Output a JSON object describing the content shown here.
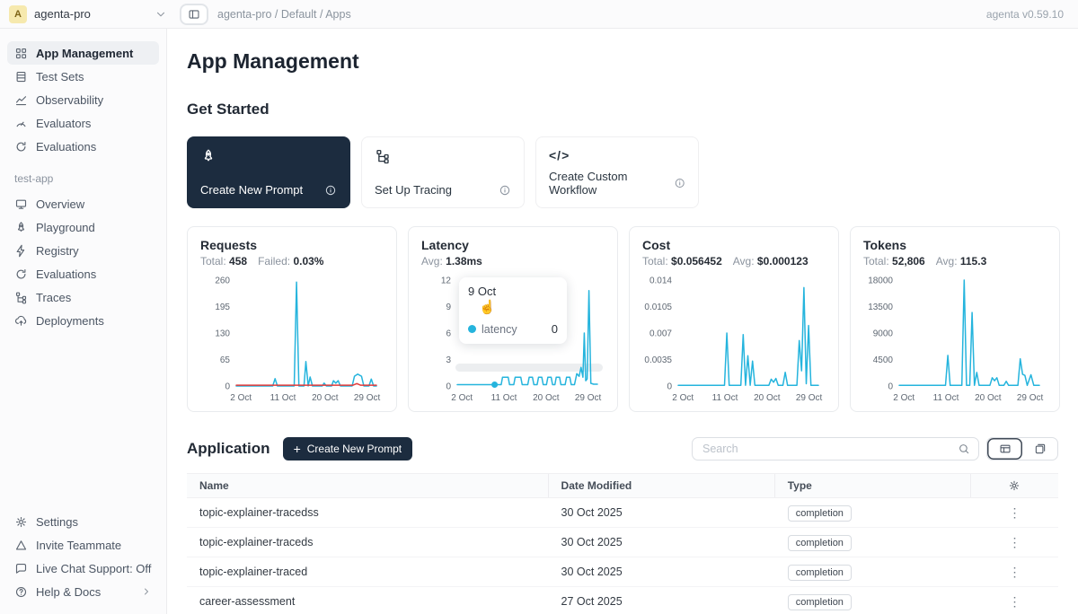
{
  "app": {
    "version_label": "agenta v0.59.10"
  },
  "icons": {
    "plus": "+",
    "kebab": "⋮",
    "cursor": "☝",
    "code": "</>"
  },
  "colors": {
    "accent_dark": "#1c2c3f",
    "chart_line": "#25b4dd",
    "failed_line": "#e23b3b",
    "avatar_bg": "#f6e9ae",
    "selected_pill": "#eef0f3"
  },
  "topbar": {
    "workspace": {
      "avatar_letter": "A",
      "name": "agenta-pro"
    },
    "breadcrumb": "agenta-pro / Default / Apps"
  },
  "sidebar": {
    "main_items": [
      {
        "label": "App Management",
        "selected": true
      },
      {
        "label": "Test Sets"
      },
      {
        "label": "Observability"
      },
      {
        "label": "Evaluators"
      },
      {
        "label": "Evaluations"
      }
    ],
    "section_label": "test-app",
    "app_items": [
      {
        "label": "Overview"
      },
      {
        "label": "Playground"
      },
      {
        "label": "Registry"
      },
      {
        "label": "Evaluations"
      },
      {
        "label": "Traces"
      },
      {
        "label": "Deployments"
      }
    ],
    "footer_items": [
      {
        "label": "Settings"
      },
      {
        "label": "Invite Teammate"
      },
      {
        "label": "Live Chat Support: Off"
      },
      {
        "label": "Help & Docs"
      }
    ]
  },
  "main": {
    "title": "App Management",
    "get_started": {
      "heading": "Get Started",
      "cards": [
        {
          "label": "Create New Prompt"
        },
        {
          "label": "Set Up Tracing"
        },
        {
          "label": "Create Custom Workflow"
        }
      ]
    },
    "latency_tooltip": {
      "date": "9 Oct",
      "series": "latency",
      "value": "0"
    },
    "application": {
      "heading": "Application",
      "create_button_label": "Create New Prompt",
      "search_placeholder": "Search",
      "table": {
        "columns": [
          "Name",
          "Date Modified",
          "Type"
        ],
        "rows": [
          {
            "name": "topic-explainer-tracedss",
            "date_modified": "30 Oct 2025",
            "type": "completion"
          },
          {
            "name": "topic-explainer-traceds",
            "date_modified": "30 Oct 2025",
            "type": "completion"
          },
          {
            "name": "topic-explainer-traced",
            "date_modified": "30 Oct 2025",
            "type": "completion"
          },
          {
            "name": "career-assessment",
            "date_modified": "27 Oct 2025",
            "type": "completion"
          }
        ]
      }
    }
  },
  "chart_data": [
    {
      "type": "line",
      "title": "Requests",
      "stats": [
        {
          "label": "Total:",
          "value": "458"
        },
        {
          "label": "Failed:",
          "value": "0.03%"
        }
      ],
      "xlim": [
        1,
        31
      ],
      "ylim": [
        0,
        260
      ],
      "yticks": [
        0,
        65,
        130,
        195,
        260
      ],
      "xticks": [
        {
          "pos": 2,
          "label": "2 Oct"
        },
        {
          "pos": 11,
          "label": "11 Oct"
        },
        {
          "pos": 20,
          "label": "20 Oct"
        },
        {
          "pos": 29,
          "label": "29 Oct"
        }
      ],
      "grid": false,
      "legend": "none",
      "series": [
        {
          "name": "requests",
          "color": "#25b4dd",
          "points": [
            [
              1,
              0
            ],
            [
              8.8,
              0
            ],
            [
              9.3,
              18
            ],
            [
              9.8,
              0
            ],
            [
              13.4,
              0
            ],
            [
              13.9,
              255
            ],
            [
              14.4,
              0
            ],
            [
              15.5,
              0
            ],
            [
              15.9,
              60
            ],
            [
              16.4,
              0
            ],
            [
              16.8,
              22
            ],
            [
              17.3,
              0
            ],
            [
              19.4,
              0
            ],
            [
              19.8,
              7
            ],
            [
              20.3,
              0
            ],
            [
              21.4,
              0
            ],
            [
              21.8,
              13
            ],
            [
              22.3,
              7
            ],
            [
              22.8,
              13
            ],
            [
              23.3,
              0
            ],
            [
              25.8,
              0
            ],
            [
              26.3,
              24
            ],
            [
              27,
              29
            ],
            [
              27.8,
              24
            ],
            [
              28.3,
              0
            ],
            [
              29.4,
              0
            ],
            [
              29.9,
              17
            ],
            [
              30.4,
              0
            ],
            [
              31,
              0
            ]
          ]
        },
        {
          "name": "failed",
          "color": "#e23b3b",
          "points": [
            [
              1,
              2
            ],
            [
              26,
              2
            ],
            [
              26.8,
              6
            ],
            [
              27.6,
              2
            ],
            [
              31,
              2
            ]
          ]
        }
      ]
    },
    {
      "type": "line",
      "title": "Latency",
      "stats": [
        {
          "label": "Avg:",
          "value": "1.38ms"
        }
      ],
      "xlim": [
        1,
        31
      ],
      "ylim": [
        0,
        12
      ],
      "yticks": [
        0,
        3,
        6,
        9,
        12
      ],
      "xticks": [
        {
          "pos": 2,
          "label": "2 Oct"
        },
        {
          "pos": 11,
          "label": "11 Oct"
        },
        {
          "pos": 20,
          "label": "20 Oct"
        },
        {
          "pos": 29,
          "label": "29 Oct"
        }
      ],
      "grid": false,
      "legend": "none",
      "marker": {
        "x": 9,
        "y": 0.15,
        "color": "#25b4dd"
      },
      "series": [
        {
          "name": "latency",
          "color": "#25b4dd",
          "points": [
            [
              1,
              0.15
            ],
            [
              9,
              0.15
            ],
            [
              10.4,
              0.15
            ],
            [
              10.7,
              1
            ],
            [
              11.9,
              1
            ],
            [
              12.2,
              0.15
            ],
            [
              13.1,
              0.15
            ],
            [
              13.4,
              1
            ],
            [
              14.6,
              1
            ],
            [
              14.9,
              0.15
            ],
            [
              16.1,
              0.15
            ],
            [
              16.4,
              1
            ],
            [
              17.1,
              1
            ],
            [
              17.4,
              0.15
            ],
            [
              18.1,
              0.15
            ],
            [
              18.4,
              1
            ],
            [
              19.1,
              1
            ],
            [
              19.4,
              0.15
            ],
            [
              20.1,
              0.15
            ],
            [
              20.4,
              1
            ],
            [
              21.1,
              1
            ],
            [
              21.4,
              0.15
            ],
            [
              21.9,
              0.15
            ],
            [
              22.2,
              1
            ],
            [
              22.9,
              1
            ],
            [
              23.2,
              0.15
            ],
            [
              24.1,
              0.15
            ],
            [
              24.4,
              1
            ],
            [
              25.1,
              1
            ],
            [
              25.4,
              0.15
            ],
            [
              26.1,
              0.15
            ],
            [
              26.6,
              1.4
            ],
            [
              27.1,
              1.1
            ],
            [
              27.5,
              2.1
            ],
            [
              27.9,
              1
            ],
            [
              28.2,
              6
            ],
            [
              28.5,
              0.6
            ],
            [
              28.8,
              0.8
            ],
            [
              29.2,
              10.8
            ],
            [
              29.6,
              0.3
            ],
            [
              30.2,
              0.2
            ],
            [
              31,
              0.2
            ]
          ]
        }
      ]
    },
    {
      "type": "line",
      "title": "Cost",
      "stats": [
        {
          "label": "Total:",
          "value": "$0.056452"
        },
        {
          "label": "Avg:",
          "value": "$0.000123"
        }
      ],
      "xlim": [
        1,
        31
      ],
      "ylim": [
        0,
        0.014
      ],
      "yticks": [
        0,
        0.0035,
        0.007,
        0.0105,
        0.014
      ],
      "xticks": [
        {
          "pos": 2,
          "label": "2 Oct"
        },
        {
          "pos": 11,
          "label": "11 Oct"
        },
        {
          "pos": 20,
          "label": "20 Oct"
        },
        {
          "pos": 29,
          "label": "29 Oct"
        }
      ],
      "grid": false,
      "legend": "none",
      "series": [
        {
          "name": "cost",
          "color": "#25b4dd",
          "points": [
            [
              1,
              0.0001
            ],
            [
              10.9,
              0.0001
            ],
            [
              11.4,
              0.007
            ],
            [
              11.9,
              0.0001
            ],
            [
              14.4,
              0.0001
            ],
            [
              14.9,
              0.0068
            ],
            [
              15.4,
              0.0001
            ],
            [
              15.9,
              0.004
            ],
            [
              16.4,
              0.0001
            ],
            [
              16.9,
              0.0033
            ],
            [
              17.4,
              0.0001
            ],
            [
              20.4,
              0.0001
            ],
            [
              20.9,
              0.0009
            ],
            [
              21.4,
              0.0005
            ],
            [
              21.9,
              0.001
            ],
            [
              22.4,
              0.0001
            ],
            [
              23.4,
              0.0001
            ],
            [
              23.9,
              0.0018
            ],
            [
              24.4,
              0.0001
            ],
            [
              26.4,
              0.0001
            ],
            [
              26.9,
              0.006
            ],
            [
              27.4,
              0.002
            ],
            [
              27.9,
              0.013
            ],
            [
              28.4,
              0.0003
            ],
            [
              28.9,
              0.008
            ],
            [
              29.4,
              0.0001
            ],
            [
              31,
              0.0001
            ]
          ]
        }
      ]
    },
    {
      "type": "line",
      "title": "Tokens",
      "stats": [
        {
          "label": "Total:",
          "value": "52,806"
        },
        {
          "label": "Avg:",
          "value": "115.3"
        }
      ],
      "xlim": [
        1,
        31
      ],
      "ylim": [
        0,
        18000
      ],
      "yticks": [
        0,
        4500,
        9000,
        13500,
        18000
      ],
      "xticks": [
        {
          "pos": 2,
          "label": "2 Oct"
        },
        {
          "pos": 11,
          "label": "11 Oct"
        },
        {
          "pos": 20,
          "label": "20 Oct"
        },
        {
          "pos": 29,
          "label": "29 Oct"
        }
      ],
      "grid": false,
      "legend": "none",
      "series": [
        {
          "name": "tokens",
          "color": "#25b4dd",
          "points": [
            [
              1,
              100
            ],
            [
              10.9,
              100
            ],
            [
              11.4,
              5200
            ],
            [
              11.9,
              100
            ],
            [
              14.4,
              100
            ],
            [
              14.9,
              18000
            ],
            [
              15.4,
              100
            ],
            [
              16.1,
              100
            ],
            [
              16.6,
              12500
            ],
            [
              17.1,
              100
            ],
            [
              17.6,
              2300
            ],
            [
              18.1,
              100
            ],
            [
              20.4,
              100
            ],
            [
              20.9,
              1400
            ],
            [
              21.4,
              900
            ],
            [
              21.9,
              1400
            ],
            [
              22.4,
              100
            ],
            [
              23.4,
              100
            ],
            [
              23.9,
              800
            ],
            [
              24.4,
              100
            ],
            [
              26.4,
              100
            ],
            [
              26.9,
              4600
            ],
            [
              27.4,
              2000
            ],
            [
              27.9,
              1800
            ],
            [
              28.4,
              100
            ],
            [
              29.2,
              1900
            ],
            [
              29.8,
              100
            ],
            [
              31,
              100
            ]
          ]
        }
      ]
    }
  ]
}
